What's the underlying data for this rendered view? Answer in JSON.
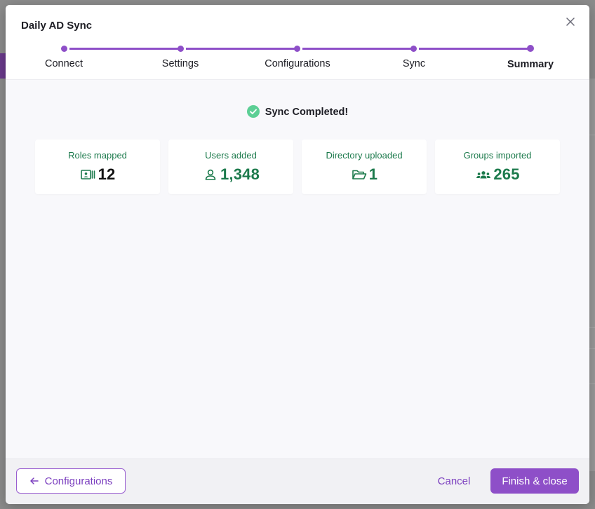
{
  "dialog": {
    "title": "Daily AD Sync"
  },
  "stepper": {
    "steps": [
      {
        "label": "Connect"
      },
      {
        "label": "Settings"
      },
      {
        "label": "Configurations"
      },
      {
        "label": "Sync"
      },
      {
        "label": "Summary"
      }
    ],
    "current": "Summary",
    "accent": "#8e4fc8"
  },
  "status": {
    "text": "Sync Completed!",
    "color": "#5ccf95"
  },
  "stats": [
    {
      "label": "Roles mapped",
      "value": "12",
      "icon": "id-card-icon"
    },
    {
      "label": "Users added",
      "value": "1,348",
      "icon": "user-icon"
    },
    {
      "label": "Directory uploaded",
      "value": "1",
      "icon": "folder-open-icon"
    },
    {
      "label": "Groups imported",
      "value": "265",
      "icon": "users-group-icon"
    }
  ],
  "footer": {
    "back_label": "Configurations",
    "cancel_label": "Cancel",
    "finish_label": "Finish & close"
  },
  "colors": {
    "success_text": "#1c7a4c",
    "primary": "#8e4fc8"
  }
}
